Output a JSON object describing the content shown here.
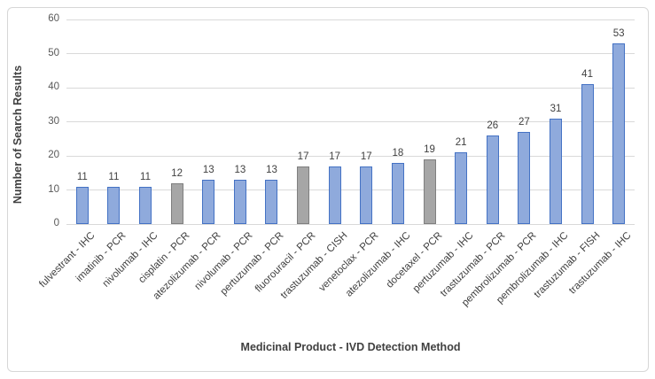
{
  "figure": {
    "background": "#FFFFFF",
    "border_color": "#D7D7D7"
  },
  "chart_data": {
    "type": "bar",
    "title": "",
    "xlabel": "Medicinal Product - IVD Detection Method",
    "ylabel": "Number of Search Results",
    "ylim": [
      0,
      60
    ],
    "yticks": [
      0,
      10,
      20,
      30,
      40,
      50,
      60
    ],
    "grid": true,
    "legend_position": "none",
    "data_labels": true,
    "categories": [
      "fulvestrant - IHC",
      "imatinib - PCR",
      "nivolumab - IHC",
      "cisplatin - PCR",
      "atezolizumab - PCR",
      "nivolumab - PCR",
      "pertuzumab - PCR",
      "fluorouracil - PCR",
      "trastuzumab - CISH",
      "venetoclax - PCR",
      "atezolizumab - IHC",
      "docetaxel - PCR",
      "pertuzumab - IHC",
      "trastuzumab - PCR",
      "pembrolizumab - PCR",
      "pembrolizumab - IHC",
      "trastuzumab - FISH",
      "trastuzumab - IHC"
    ],
    "values": [
      11,
      11,
      11,
      12,
      13,
      13,
      13,
      17,
      17,
      17,
      18,
      19,
      21,
      26,
      27,
      31,
      41,
      53
    ],
    "bar_color_keys": [
      "blue",
      "blue",
      "blue",
      "gray",
      "blue",
      "blue",
      "blue",
      "gray",
      "blue",
      "blue",
      "blue",
      "gray",
      "blue",
      "blue",
      "blue",
      "blue",
      "blue",
      "blue"
    ],
    "colors": {
      "blue_fill": "#8FAADC",
      "blue_border": "#4472C4",
      "gray_fill": "#A6A6A6",
      "gray_border": "#7F7F7F",
      "gridline": "#D9D9D9",
      "tick_label": "#595959",
      "data_label": "#404040",
      "axis_title": "#404040"
    }
  }
}
